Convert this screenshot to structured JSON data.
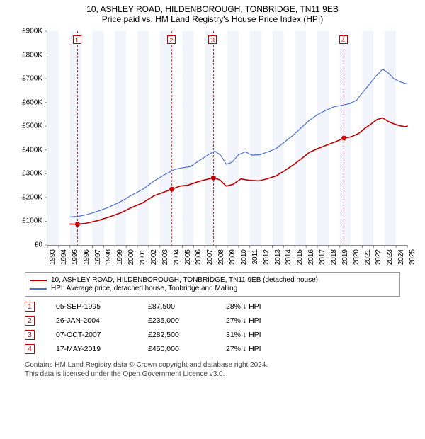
{
  "title_line1": "10, ASHLEY ROAD, HILDENBOROUGH, TONBRIDGE, TN11 9EB",
  "title_line2": "Price paid vs. HM Land Registry's House Price Index (HPI)",
  "chart": {
    "x_min_year": 1993,
    "x_max_year": 2025,
    "y_min": 0,
    "y_max": 900000,
    "y_tick_step": 100000,
    "y_tick_labels": [
      "£0",
      "£100K",
      "£200K",
      "£300K",
      "£400K",
      "£500K",
      "£600K",
      "£700K",
      "£800K",
      "£900K"
    ],
    "x_ticks": [
      1993,
      1994,
      1995,
      1996,
      1997,
      1998,
      1999,
      2000,
      2001,
      2002,
      2003,
      2004,
      2005,
      2006,
      2007,
      2008,
      2009,
      2010,
      2011,
      2012,
      2013,
      2014,
      2015,
      2016,
      2017,
      2018,
      2019,
      2020,
      2021,
      2022,
      2023,
      2024,
      2025
    ],
    "band_color": "#f2f4fb",
    "band_even": true,
    "axis_color": "#888888",
    "plot_bg": "#ffffff",
    "series": [
      {
        "id": "price_paid",
        "label": "10, ASHLEY ROAD, HILDENBOROUGH, TONBRIDGE, TN11 9EB (detached house)",
        "color": "#c00000",
        "line_width": 1.6,
        "points": [
          [
            1995.0,
            88000
          ],
          [
            1995.68,
            87500
          ],
          [
            1996.5,
            92000
          ],
          [
            1997.5,
            103000
          ],
          [
            1998.5,
            118000
          ],
          [
            1999.5,
            135000
          ],
          [
            2000.5,
            158000
          ],
          [
            2001.5,
            178000
          ],
          [
            2002.5,
            208000
          ],
          [
            2003.5,
            225000
          ],
          [
            2004.07,
            235000
          ],
          [
            2004.8,
            248000
          ],
          [
            2005.5,
            252000
          ],
          [
            2006.5,
            268000
          ],
          [
            2007.5,
            280000
          ],
          [
            2007.77,
            282500
          ],
          [
            2008.3,
            275000
          ],
          [
            2008.9,
            248000
          ],
          [
            2009.5,
            255000
          ],
          [
            2010.2,
            278000
          ],
          [
            2011.0,
            272000
          ],
          [
            2011.8,
            270000
          ],
          [
            2012.5,
            278000
          ],
          [
            2013.3,
            290000
          ],
          [
            2014.0,
            310000
          ],
          [
            2014.8,
            335000
          ],
          [
            2015.5,
            360000
          ],
          [
            2016.3,
            390000
          ],
          [
            2017.0,
            405000
          ],
          [
            2017.8,
            420000
          ],
          [
            2018.5,
            432000
          ],
          [
            2019.0,
            442000
          ],
          [
            2019.37,
            450000
          ],
          [
            2020.0,
            455000
          ],
          [
            2020.7,
            470000
          ],
          [
            2021.2,
            490000
          ],
          [
            2021.8,
            510000
          ],
          [
            2022.3,
            528000
          ],
          [
            2022.8,
            535000
          ],
          [
            2023.3,
            520000
          ],
          [
            2023.8,
            510000
          ],
          [
            2024.3,
            502000
          ],
          [
            2024.8,
            498000
          ],
          [
            2025.0,
            500000
          ]
        ]
      },
      {
        "id": "hpi",
        "label": "HPI: Average price, detached house, Tonbridge and Malling",
        "color": "#4a6fd6",
        "line_width": 1.2,
        "points": [
          [
            1995.0,
            118000
          ],
          [
            1995.7,
            120000
          ],
          [
            1996.5,
            128000
          ],
          [
            1997.5,
            142000
          ],
          [
            1998.5,
            160000
          ],
          [
            1999.5,
            182000
          ],
          [
            2000.5,
            210000
          ],
          [
            2001.5,
            235000
          ],
          [
            2002.5,
            270000
          ],
          [
            2003.5,
            298000
          ],
          [
            2004.3,
            318000
          ],
          [
            2005.0,
            325000
          ],
          [
            2005.7,
            330000
          ],
          [
            2006.5,
            355000
          ],
          [
            2007.3,
            380000
          ],
          [
            2007.9,
            395000
          ],
          [
            2008.4,
            378000
          ],
          [
            2008.9,
            340000
          ],
          [
            2009.4,
            348000
          ],
          [
            2010.0,
            380000
          ],
          [
            2010.6,
            392000
          ],
          [
            2011.2,
            378000
          ],
          [
            2011.9,
            380000
          ],
          [
            2012.6,
            392000
          ],
          [
            2013.3,
            405000
          ],
          [
            2014.0,
            430000
          ],
          [
            2014.8,
            460000
          ],
          [
            2015.5,
            490000
          ],
          [
            2016.3,
            525000
          ],
          [
            2017.0,
            548000
          ],
          [
            2017.8,
            568000
          ],
          [
            2018.5,
            582000
          ],
          [
            2019.2,
            588000
          ],
          [
            2019.9,
            595000
          ],
          [
            2020.5,
            610000
          ],
          [
            2021.0,
            640000
          ],
          [
            2021.6,
            675000
          ],
          [
            2022.2,
            710000
          ],
          [
            2022.8,
            740000
          ],
          [
            2023.3,
            725000
          ],
          [
            2023.8,
            700000
          ],
          [
            2024.3,
            688000
          ],
          [
            2024.8,
            680000
          ],
          [
            2025.0,
            678000
          ]
        ]
      }
    ],
    "transactions": [
      {
        "idx": "1",
        "year": 1995.68,
        "value": 87500,
        "date": "05-SEP-1995",
        "price": "£87,500",
        "delta": "28% ↓ HPI"
      },
      {
        "idx": "2",
        "year": 2004.07,
        "value": 235000,
        "date": "26-JAN-2004",
        "price": "£235,000",
        "delta": "27% ↓ HPI"
      },
      {
        "idx": "3",
        "year": 2007.77,
        "value": 282500,
        "date": "07-OCT-2007",
        "price": "£282,500",
        "delta": "31% ↓ HPI"
      },
      {
        "idx": "4",
        "year": 2019.37,
        "value": 450000,
        "date": "17-MAY-2019",
        "price": "£450,000",
        "delta": "27% ↓ HPI"
      }
    ],
    "tx_marker_border": "#c00000",
    "tx_marker_text": "#c00000",
    "tx_vline_color": "#c00000",
    "tx_vline_dash": "3,2",
    "tx_point_radius": 3.5
  },
  "footer_line1": "Contains HM Land Registry data © Crown copyright and database right 2024.",
  "footer_line2": "This data is licensed under the Open Government Licence v3.0."
}
